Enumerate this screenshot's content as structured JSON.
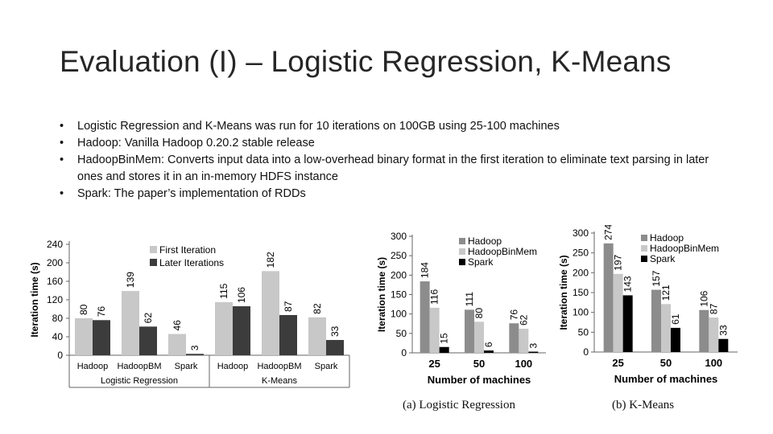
{
  "slide": {
    "title": "Evaluation (I) – Logistic Regression, K-Means",
    "bullets": [
      "Logistic Regression and K-Means was run for 10 iterations on 100GB using 25-100 machines",
      "Hadoop: Vanilla Hadoop 0.20.2 stable release",
      "HadoopBinMem: Converts input data into a low-overhead binary format in the first iteration to eliminate text parsing in later ones and stores it in an in-memory HDFS instance",
      "Spark: The paper’s implementation of RDDs"
    ]
  },
  "colors": {
    "first_iteration": "#c8c8c8",
    "later_iterations": "#3c3c3c",
    "hadoop": "#8c8c8c",
    "hadoopbinmem": "#c8c8c8",
    "spark": "#000000"
  },
  "chart_data": [
    {
      "type": "bar",
      "ylabel": "Iteration time (s)",
      "ylim": [
        0,
        240
      ],
      "yticks": [
        0,
        40,
        80,
        120,
        160,
        200,
        240
      ],
      "categories": [
        "Hadoop",
        "HadoopBM",
        "Spark",
        "Hadoop",
        "HadoopBM",
        "Spark"
      ],
      "groups": [
        "Logistic Regression",
        "K-Means"
      ],
      "legend_position": "top",
      "series": [
        {
          "name": "First Iteration",
          "values": [
            80,
            139,
            46,
            115,
            182,
            82
          ],
          "value_labels": [
            "80",
            "139",
            "46",
            "115",
            "182",
            "82"
          ]
        },
        {
          "name": "Later Iterations",
          "values": [
            76,
            62,
            3,
            106,
            87,
            33
          ],
          "value_labels": [
            "76",
            "62",
            "3",
            "106",
            "87",
            "33"
          ]
        }
      ]
    },
    {
      "type": "bar",
      "ylabel": "Iteration time (s)",
      "xlabel": "Number of machines",
      "ylim": [
        0,
        300
      ],
      "yticks": [
        0,
        50,
        100,
        150,
        200,
        250,
        300
      ],
      "categories": [
        "25",
        "50",
        "100"
      ],
      "legend_position": "top-right",
      "caption": "(a)  Logistic Regression",
      "series": [
        {
          "name": "Hadoop",
          "values": [
            184,
            111,
            76
          ],
          "value_labels": [
            "184",
            "111",
            "76"
          ]
        },
        {
          "name": "HadoopBinMem",
          "values": [
            116,
            80,
            62
          ],
          "value_labels": [
            "116",
            "80",
            "62"
          ]
        },
        {
          "name": "Spark",
          "values": [
            15,
            6,
            3
          ],
          "value_labels": [
            "15",
            "6",
            "3"
          ]
        }
      ]
    },
    {
      "type": "bar",
      "ylabel": "Iteration time (s)",
      "xlabel": "Number of machines",
      "ylim": [
        0,
        300
      ],
      "yticks": [
        0,
        50,
        100,
        150,
        200,
        250,
        300
      ],
      "categories": [
        "25",
        "50",
        "100"
      ],
      "legend_position": "top-right",
      "caption": "(b)  K-Means",
      "series": [
        {
          "name": "Hadoop",
          "values": [
            274,
            157,
            106
          ],
          "value_labels": [
            "274",
            "157",
            "106"
          ]
        },
        {
          "name": "HadoopBinMem",
          "values": [
            197,
            121,
            87
          ],
          "value_labels": [
            "197",
            "121",
            "87"
          ]
        },
        {
          "name": "Spark",
          "values": [
            143,
            61,
            33
          ],
          "value_labels": [
            "143",
            "61",
            "33"
          ]
        }
      ]
    }
  ]
}
